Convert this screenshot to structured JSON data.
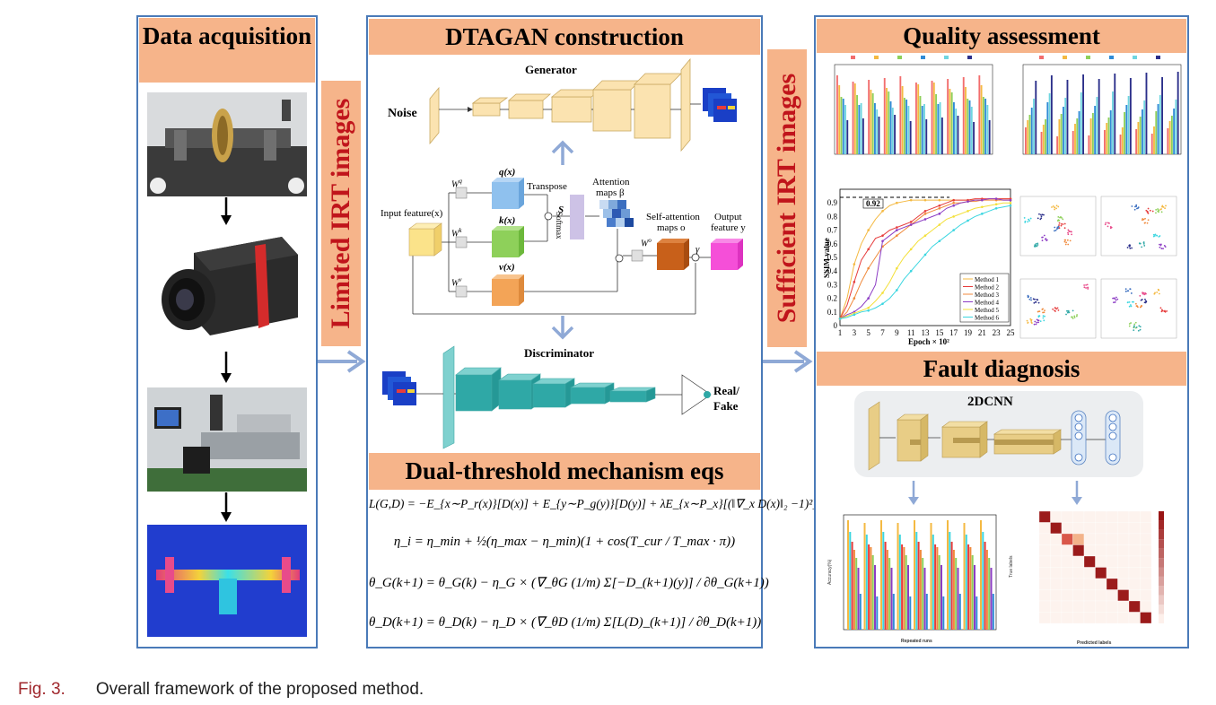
{
  "panels": {
    "data_acquisition": {
      "title": "Data acquisition"
    },
    "dtagan": {
      "title": "DTAGAN construction"
    },
    "dual_threshold": {
      "title": "Dual-threshold mechanism eqs"
    },
    "quality": {
      "title": "Quality assessment"
    },
    "fault": {
      "title": "Fault diagnosis"
    }
  },
  "bands": {
    "limited": "Limited IRT images",
    "sufficient": "Sufficient IRT images"
  },
  "generator": {
    "title": "Generator",
    "noise": "Noise"
  },
  "attention": {
    "input": "Input feature(x)",
    "wq": "W",
    "wq_sup": "q",
    "wk": "W",
    "wk_sup": "k",
    "wv": "W",
    "wv_sup": "v",
    "wo": "W",
    "wo_sup": "o",
    "qx": "q(x)",
    "kx": "k(x)",
    "vx": "v(x)",
    "transpose": "Transpose",
    "s": "S",
    "softmax": "Softmax",
    "attn_maps": "Attention",
    "attn_maps2": "maps β",
    "self_attn": "Self-attention",
    "self_attn2": "maps o",
    "output": "Output",
    "output2": "feature y",
    "gamma": "γ"
  },
  "discriminator": {
    "title": "Discriminator",
    "out1": "Real/",
    "out2": "Fake"
  },
  "equations": {
    "eq1": "L(G,D) = −E_{x∼P_r(x)}[D(x)] + E_{y∼P_g(y)}[D(y)] + λE_{x∼P_x}[(‖∇_x D(x)‖₂ −1)²]",
    "eq2": "η_i = η_min + ½(η_max − η_min)(1 + cos(T_cur / T_max · π))",
    "eq3": "θ_G(k+1) = θ_G(k) − η_G × (∇_θG (1/m) Σ[−D_(k+1)(y)] / ∂θ_G(k+1))",
    "eq4": "θ_D(k+1) = θ_D(k) − η_D × (∇_θD (1/m) Σ[L(D)_(k+1)] / ∂θ_D(k+1))"
  },
  "ssim_chart": {
    "ylabel": "SSIM value",
    "xlabel": "Epoch × 10²",
    "annotation": "0.92",
    "x_ticks": [
      "1",
      "3",
      "5",
      "7",
      "9",
      "11",
      "13",
      "15",
      "17",
      "19",
      "21",
      "23",
      "25"
    ],
    "y_ticks": [
      "0",
      "0.1",
      "0.2",
      "0.3",
      "0.4",
      "0.5",
      "0.6",
      "0.7",
      "0.8",
      "0.9"
    ],
    "legend": [
      "Method 1",
      "Method 2",
      "Method 3",
      "Method 4",
      "Method 5",
      "Method 6"
    ]
  },
  "fault_diagnosis": {
    "network": "2DCNN",
    "acc_xlabel": "Repeated runs",
    "acc_ylabel": "Accuracy(%)",
    "cm_xlabel": "Predicted labels",
    "cm_ylabel": "True labels"
  },
  "caption": {
    "fig": "Fig. 3.",
    "text": "Overall framework of the proposed method."
  },
  "colors": {
    "border": "#4a7ab8",
    "header": "#f6b48a",
    "band_text": "#c0141b",
    "arrow": "#8fa9d6"
  }
}
